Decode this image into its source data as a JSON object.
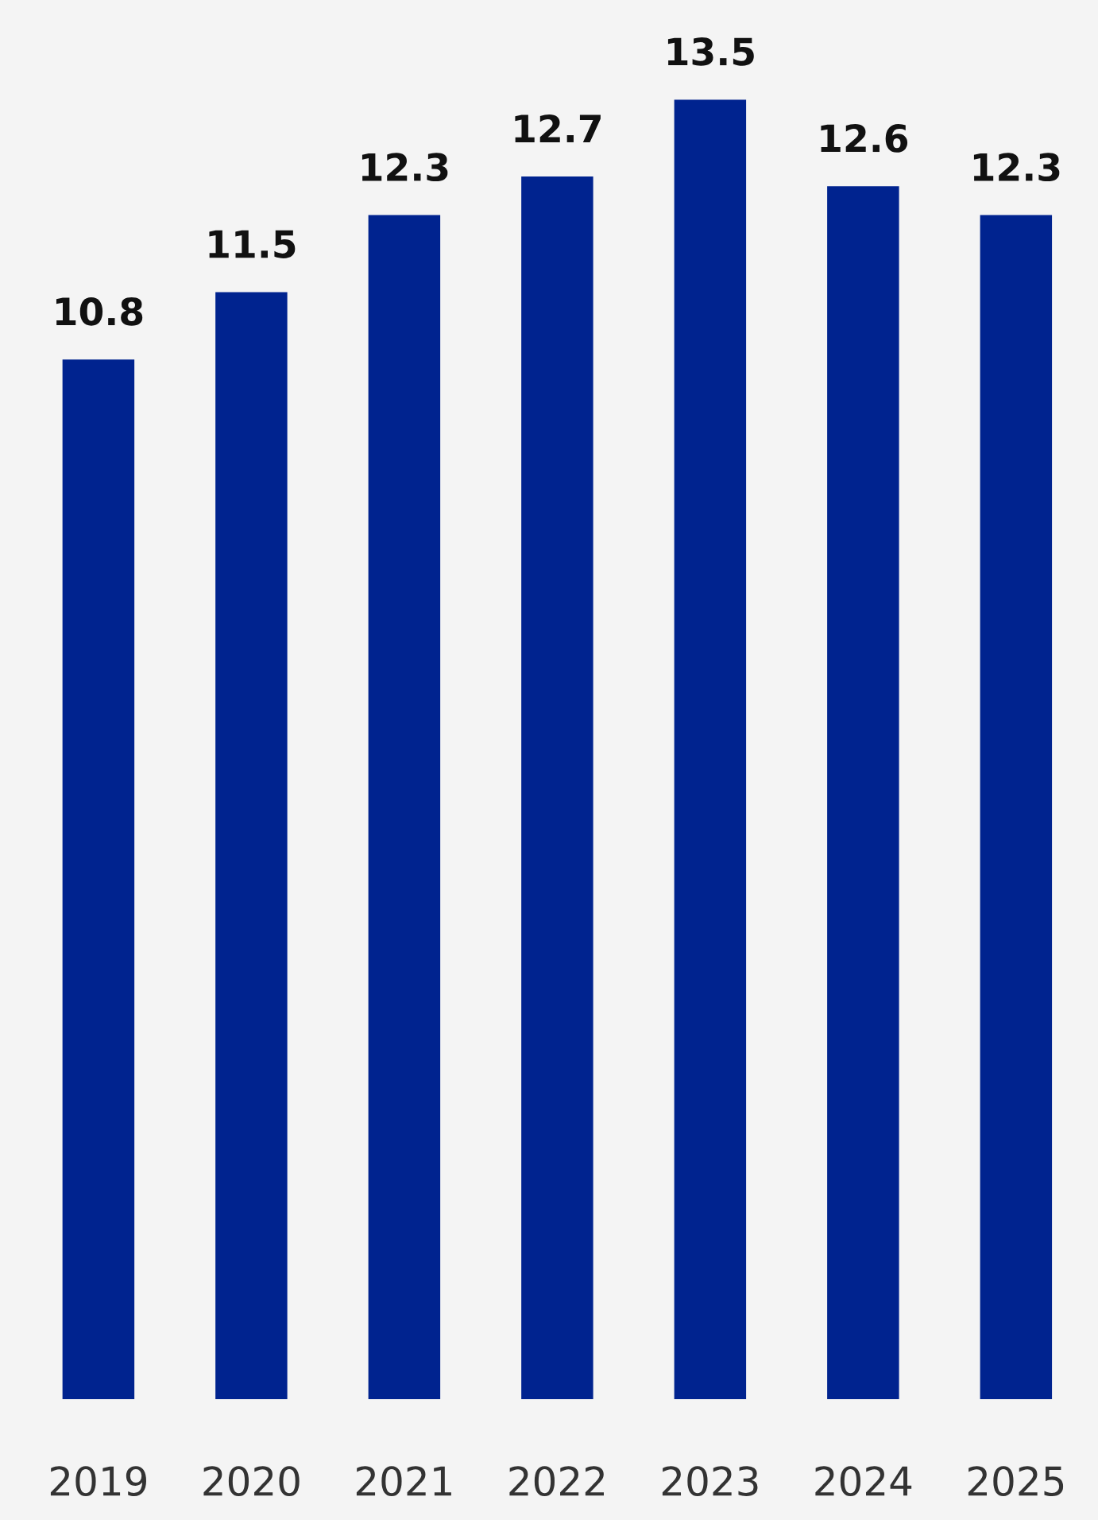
{
  "chart_data": {
    "type": "bar",
    "categories": [
      "2019",
      "2020",
      "2021",
      "2022",
      "2023",
      "2024",
      "2025"
    ],
    "values": [
      10.8,
      11.5,
      12.3,
      12.7,
      13.5,
      12.6,
      12.3
    ],
    "color": "#00238f",
    "data_labels": true,
    "grid": false,
    "legend": false
  }
}
